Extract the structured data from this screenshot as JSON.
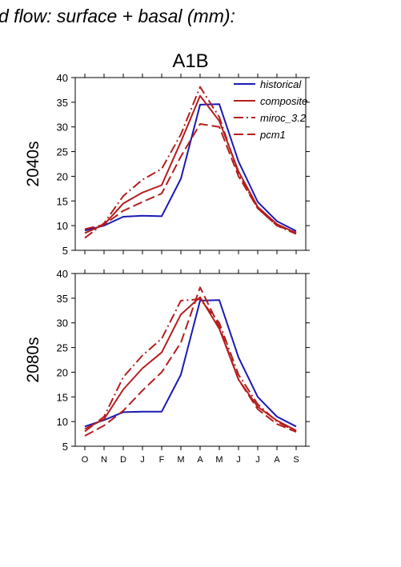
{
  "figure_title": "d flow: surface + basal (mm):",
  "colors": {
    "historical": "#1a1ab4",
    "scenario": "#b41e1e"
  },
  "chart_data": [
    {
      "type": "line",
      "title": "A1B",
      "ylabel": "2040s",
      "xlabel": "",
      "categories": [
        "O",
        "N",
        "D",
        "J",
        "F",
        "M",
        "A",
        "M",
        "J",
        "J",
        "A",
        "S"
      ],
      "ylim": [
        5,
        40
      ],
      "yticks": [
        5,
        10,
        15,
        20,
        25,
        30,
        35,
        40
      ],
      "legend": "top-right",
      "series": [
        {
          "name": "historical",
          "color": "#1a1ab4",
          "dash": "solid",
          "values": [
            9.0,
            10.0,
            11.8,
            12.0,
            11.9,
            19.5,
            34.5,
            34.6,
            23.0,
            14.8,
            10.9,
            8.9
          ]
        },
        {
          "name": "composite",
          "color": "#b41e1e",
          "dash": "solid",
          "values": [
            8.5,
            10.2,
            14.5,
            16.7,
            18.2,
            27.0,
            36.3,
            31.2,
            21.0,
            13.8,
            10.3,
            8.5
          ]
        },
        {
          "name": "miroc_3.2",
          "color": "#b41e1e",
          "dash": "dashdot",
          "values": [
            7.5,
            10.5,
            16.0,
            19.3,
            21.5,
            28.5,
            38.1,
            32.0,
            20.5,
            13.5,
            10.0,
            8.3
          ]
        },
        {
          "name": "pcm1",
          "color": "#b41e1e",
          "dash": "dash",
          "values": [
            9.3,
            10.2,
            13.0,
            14.8,
            16.5,
            24.0,
            30.6,
            30.0,
            20.0,
            13.5,
            10.0,
            8.6
          ]
        }
      ]
    },
    {
      "type": "line",
      "title": "",
      "ylabel": "2080s",
      "xlabel": "",
      "categories": [
        "O",
        "N",
        "D",
        "J",
        "F",
        "M",
        "A",
        "M",
        "J",
        "J",
        "A",
        "S"
      ],
      "ylim": [
        5,
        40
      ],
      "yticks": [
        5,
        10,
        15,
        20,
        25,
        30,
        35,
        40
      ],
      "series": [
        {
          "name": "historical",
          "color": "#1a1ab4",
          "dash": "solid",
          "values": [
            9.0,
            10.3,
            11.9,
            12.0,
            12.0,
            19.5,
            34.5,
            34.6,
            23.0,
            15.0,
            11.0,
            9.0
          ]
        },
        {
          "name": "composite",
          "color": "#b41e1e",
          "dash": "solid",
          "values": [
            8.5,
            10.5,
            16.5,
            20.8,
            24.0,
            31.7,
            35.2,
            28.8,
            18.5,
            13.0,
            10.2,
            8.2
          ]
        },
        {
          "name": "miroc_3.2",
          "color": "#b41e1e",
          "dash": "dashdot",
          "values": [
            8.0,
            11.0,
            19.0,
            23.4,
            26.8,
            34.5,
            34.8,
            30.0,
            19.5,
            13.5,
            10.0,
            8.0
          ]
        },
        {
          "name": "pcm1",
          "color": "#b41e1e",
          "dash": "dash",
          "values": [
            7.1,
            9.2,
            12.2,
            16.3,
            20.0,
            26.0,
            37.2,
            29.2,
            18.5,
            12.5,
            9.5,
            7.9
          ]
        }
      ]
    }
  ]
}
